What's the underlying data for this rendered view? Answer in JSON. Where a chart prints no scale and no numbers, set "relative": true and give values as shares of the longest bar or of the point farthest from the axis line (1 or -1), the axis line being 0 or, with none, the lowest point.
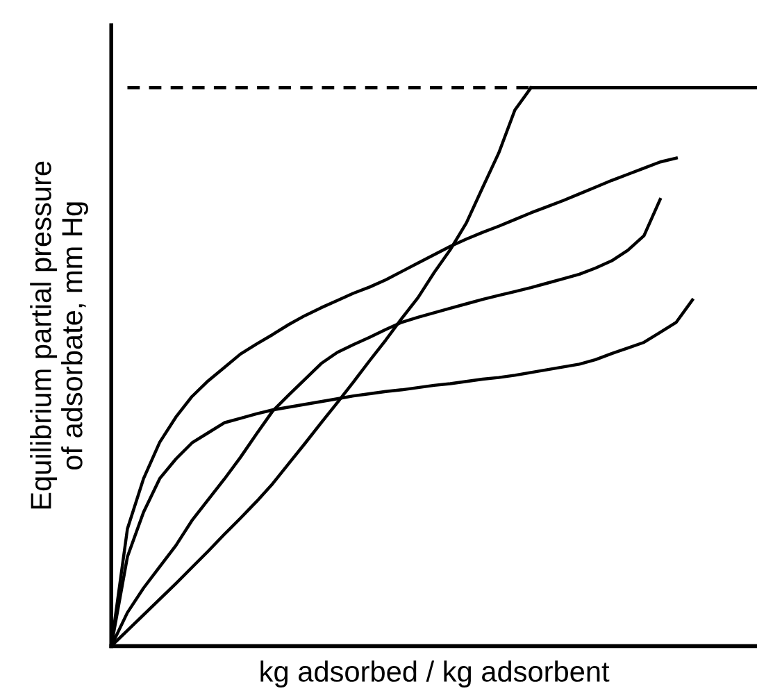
{
  "chart_data": {
    "type": "line",
    "relative": true,
    "xlabel": "kg adsorbed / kg adsorbent",
    "ylabel": "Equilibrium partial pressure\nof adsorbate, mm Hg",
    "marker": "none",
    "categories": [
      null,
      null,
      null,
      null,
      null,
      null,
      null,
      null,
      null,
      null,
      null,
      null,
      null,
      null,
      null,
      null,
      null,
      null,
      null,
      null,
      null,
      null,
      null,
      null,
      null,
      null,
      null,
      null,
      null,
      null,
      null,
      null,
      null,
      null,
      null,
      null,
      null,
      null,
      null,
      null,
      null
    ],
    "series": [
      {
        "color": "#000000",
        "line_style": "solid",
        "values": [
          0,
          0.028,
          0.056,
          0.084,
          0.112,
          0.141,
          0.17,
          0.2,
          0.229,
          0.259,
          0.291,
          0.327,
          0.363,
          0.4,
          0.436,
          0.473,
          0.511,
          0.548,
          0.587,
          0.624,
          0.669,
          0.71,
          0.758,
          0.821,
          0.883,
          0.96,
          1.0,
          null,
          null,
          null,
          null,
          null,
          null,
          null,
          null,
          null,
          null,
          null,
          null,
          null,
          null
        ]
      },
      {
        "color": "#000000",
        "line_style": "solid",
        "values": [
          0,
          0.16,
          0.24,
          0.3,
          0.335,
          0.364,
          0.382,
          0.4,
          0.408,
          0.416,
          0.423,
          0.428,
          0.433,
          0.438,
          0.443,
          0.448,
          0.452,
          0.456,
          0.459,
          0.463,
          0.467,
          0.47,
          0.474,
          0.478,
          0.481,
          0.485,
          0.49,
          0.495,
          0.5,
          0.505,
          0.513,
          0.524,
          0.534,
          0.544,
          0.562,
          0.58,
          0.62,
          null,
          null,
          null,
          null
        ]
      },
      {
        "color": "#000000",
        "line_style": "solid",
        "values": [
          0,
          0.06,
          0.104,
          0.142,
          0.18,
          0.225,
          0.262,
          0.299,
          0.338,
          0.38,
          0.421,
          0.45,
          0.478,
          0.506,
          0.526,
          0.54,
          0.553,
          0.567,
          0.58,
          0.589,
          0.597,
          0.605,
          0.613,
          0.621,
          0.628,
          0.635,
          0.642,
          0.65,
          0.658,
          0.666,
          0.677,
          0.69,
          0.709,
          0.735,
          0.8,
          null,
          null,
          null,
          null,
          null,
          null
        ]
      },
      {
        "color": "#000000",
        "line_style": "solid",
        "values": [
          0,
          0.21,
          0.3,
          0.365,
          0.41,
          0.447,
          0.475,
          0.499,
          0.523,
          0.541,
          0.558,
          0.576,
          0.592,
          0.606,
          0.619,
          0.632,
          0.643,
          0.656,
          0.671,
          0.686,
          0.701,
          0.716,
          0.729,
          0.741,
          0.752,
          0.764,
          0.776,
          0.787,
          0.798,
          0.81,
          0.822,
          0.834,
          0.845,
          0.856,
          0.867,
          0.874,
          null,
          null,
          null,
          null,
          null
        ]
      },
      {
        "color": "#000000",
        "line_style": "dashed",
        "values": [
          null,
          1.0,
          1.0,
          1.0,
          1.0,
          1.0,
          1.0,
          1.0,
          1.0,
          1.0,
          1.0,
          1.0,
          1.0,
          1.0,
          1.0,
          1.0,
          1.0,
          1.0,
          1.0,
          1.0,
          1.0,
          1.0,
          1.0,
          1.0,
          1.0,
          1.0,
          1.0,
          null,
          null,
          null,
          null,
          null,
          null,
          null,
          null,
          null,
          null,
          null,
          null,
          null,
          null
        ]
      },
      {
        "color": "#000000",
        "line_style": "solid",
        "values": [
          null,
          null,
          null,
          null,
          null,
          null,
          null,
          null,
          null,
          null,
          null,
          null,
          null,
          null,
          null,
          null,
          null,
          null,
          null,
          null,
          null,
          null,
          null,
          null,
          null,
          null,
          1.0,
          1.0,
          1.0,
          1.0,
          1.0,
          1.0,
          1.0,
          1.0,
          1.0,
          1.0,
          1.0,
          1.0,
          1.0,
          1.0,
          1.0
        ]
      }
    ]
  }
}
